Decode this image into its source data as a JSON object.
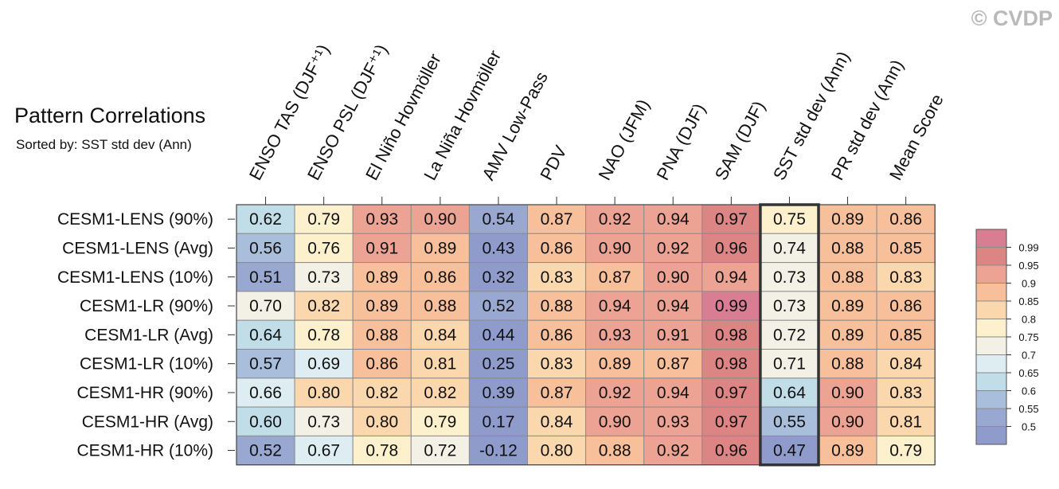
{
  "chart_data": {
    "type": "heatmap",
    "title": "Pattern Correlations",
    "subtitle": "Sorted by: SST std dev (Ann)",
    "watermark": "© CVDP",
    "columns": [
      "ENSO TAS (DJF⁺¹)",
      "ENSO PSL (DJF⁺¹)",
      "El Niño Hovmöller",
      "La Niña Hovmöller",
      "AMV Low-Pass",
      "PDV",
      "NAO (JFM)",
      "PNA (DJF)",
      "SAM (DJF)",
      "SST std dev (Ann)",
      "PR std dev (Ann)",
      "Mean Score"
    ],
    "rows": [
      "CESM1-LENS (90%)",
      "CESM1-LENS (Avg)",
      "CESM1-LENS (10%)",
      "CESM1-LR (90%)",
      "CESM1-LR (Avg)",
      "CESM1-LR (10%)",
      "CESM1-HR (90%)",
      "CESM1-HR (Avg)",
      "CESM1-HR (10%)"
    ],
    "values": [
      [
        "0.62",
        "0.79",
        "0.93",
        "0.90",
        "0.54",
        "0.87",
        "0.92",
        "0.94",
        "0.97",
        "0.75",
        "0.89",
        "0.86"
      ],
      [
        "0.56",
        "0.76",
        "0.91",
        "0.89",
        "0.43",
        "0.86",
        "0.90",
        "0.92",
        "0.96",
        "0.74",
        "0.88",
        "0.85"
      ],
      [
        "0.51",
        "0.73",
        "0.89",
        "0.86",
        "0.32",
        "0.83",
        "0.87",
        "0.90",
        "0.94",
        "0.73",
        "0.88",
        "0.83"
      ],
      [
        "0.70",
        "0.82",
        "0.89",
        "0.88",
        "0.52",
        "0.88",
        "0.94",
        "0.94",
        "0.99",
        "0.73",
        "0.89",
        "0.86"
      ],
      [
        "0.64",
        "0.78",
        "0.88",
        "0.84",
        "0.44",
        "0.86",
        "0.93",
        "0.91",
        "0.98",
        "0.72",
        "0.89",
        "0.85"
      ],
      [
        "0.57",
        "0.69",
        "0.86",
        "0.81",
        "0.25",
        "0.83",
        "0.89",
        "0.87",
        "0.98",
        "0.71",
        "0.88",
        "0.84"
      ],
      [
        "0.66",
        "0.80",
        "0.82",
        "0.82",
        "0.39",
        "0.87",
        "0.92",
        "0.94",
        "0.97",
        "0.64",
        "0.90",
        "0.83"
      ],
      [
        "0.60",
        "0.73",
        "0.80",
        "0.79",
        "0.17",
        "0.84",
        "0.90",
        "0.93",
        "0.97",
        "0.55",
        "0.90",
        "0.81"
      ],
      [
        "0.52",
        "0.67",
        "0.78",
        "0.72",
        "-0.12",
        "0.80",
        "0.88",
        "0.92",
        "0.96",
        "0.47",
        "0.89",
        "0.79"
      ]
    ],
    "highlight_column": "SST std dev (Ann)",
    "legend": {
      "levels": [
        "0.99",
        "0.95",
        "0.9",
        "0.85",
        "0.8",
        "0.75",
        "0.7",
        "0.65",
        "0.6",
        "0.55",
        "0.5"
      ],
      "colors": [
        "#d87d92",
        "#dc8584",
        "#eda394",
        "#f7bf9a",
        "#fbd7ad",
        "#fdf0cd",
        "#f3f1e6",
        "#ddedf1",
        "#c0dde8",
        "#a9bedb",
        "#98a8d1",
        "#8f9bca"
      ]
    }
  }
}
